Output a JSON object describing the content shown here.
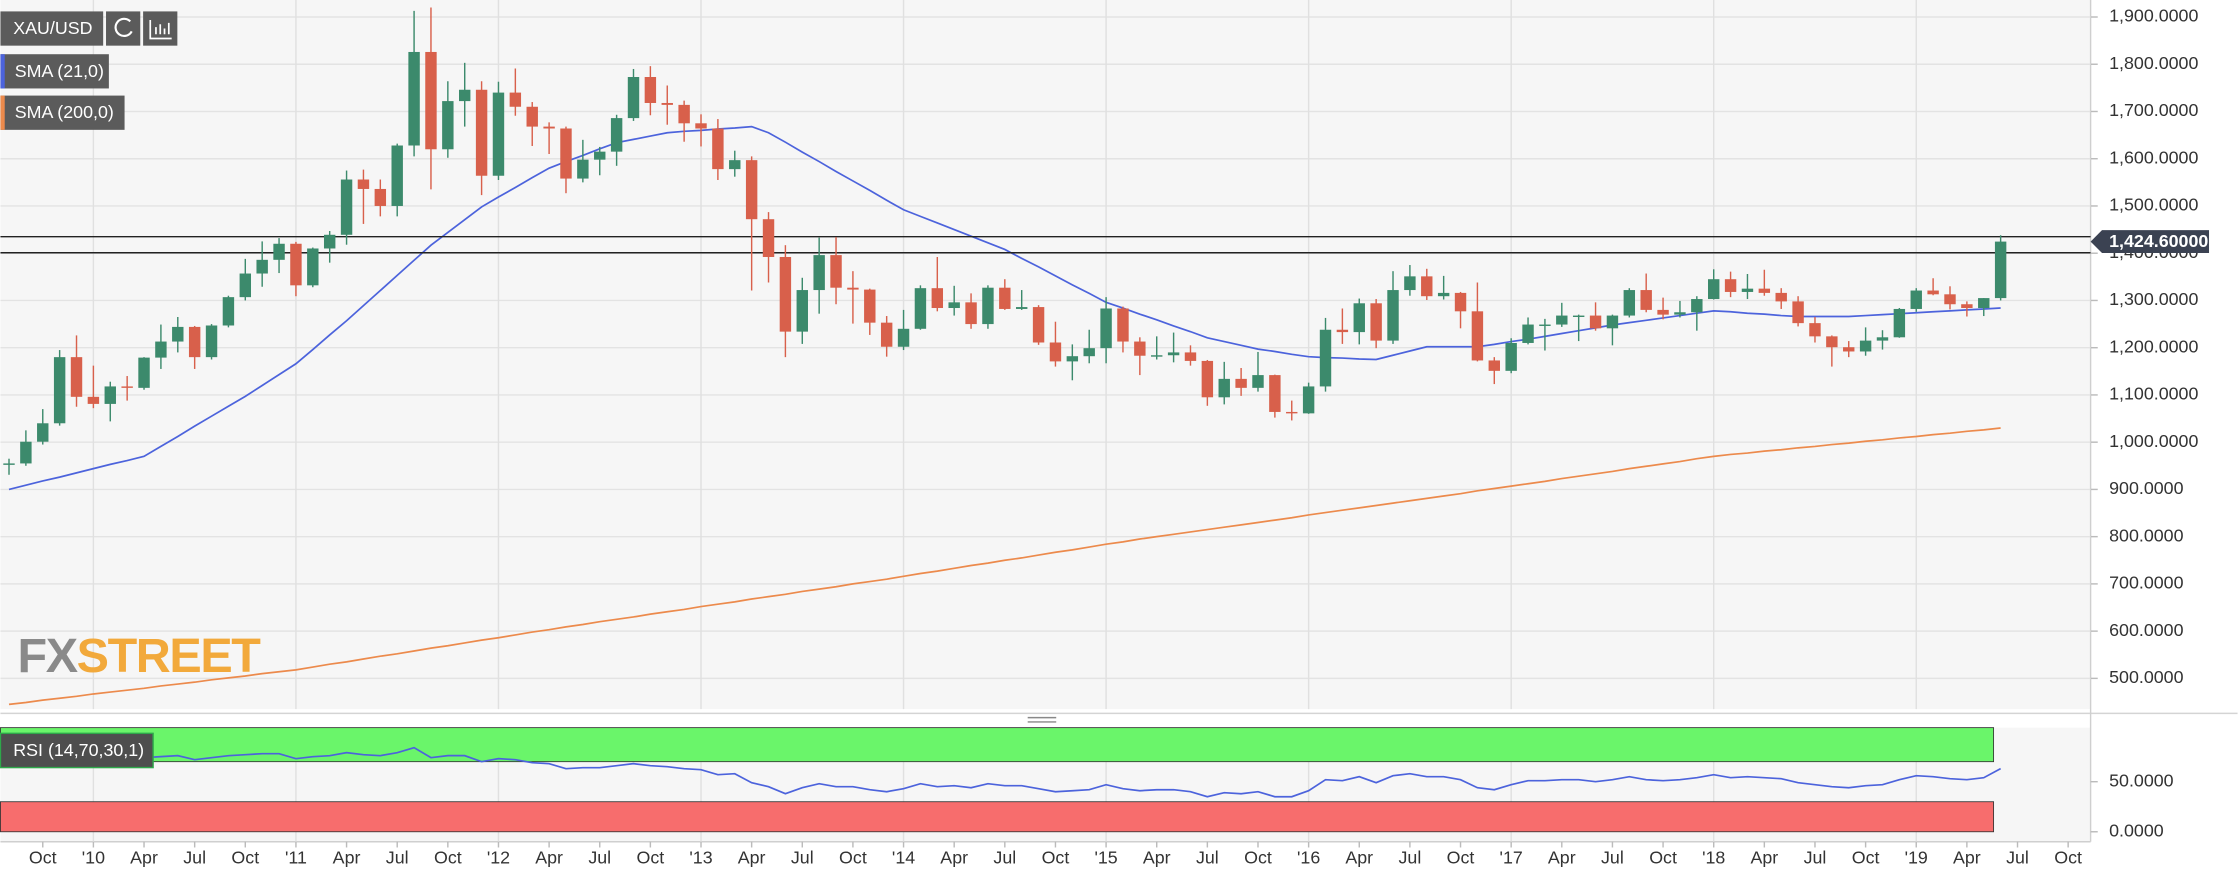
{
  "logo": [
    "FX",
    "STREET"
  ],
  "chart_data": [
    {
      "type": "candlestick",
      "title": "XAU/USD",
      "categories": [
        null,
        null,
        "Oct",
        null,
        null,
        "'10",
        null,
        null,
        "Apr",
        null,
        null,
        "Jul",
        null,
        null,
        "Oct",
        null,
        null,
        "'11",
        null,
        null,
        "Apr",
        null,
        null,
        "Jul",
        null,
        null,
        "Oct",
        null,
        null,
        "'12",
        null,
        null,
        "Apr",
        null,
        null,
        "Jul",
        null,
        null,
        "Oct",
        null,
        null,
        "'13",
        null,
        null,
        "Apr",
        null,
        null,
        "Jul",
        null,
        null,
        "Oct",
        null,
        null,
        "'14",
        null,
        null,
        "Apr",
        null,
        null,
        "Jul",
        null,
        null,
        "Oct",
        null,
        null,
        "'15",
        null,
        null,
        "Apr",
        null,
        null,
        "Jul",
        null,
        null,
        "Oct",
        null,
        null,
        "'16",
        null,
        null,
        "Apr",
        null,
        null,
        "Jul",
        null,
        null,
        "Oct",
        null,
        null,
        "'17",
        null,
        null,
        "Apr",
        null,
        null,
        "Jul",
        null,
        null,
        "Oct",
        null,
        null,
        "'18",
        null,
        null,
        "Apr",
        null,
        null,
        "Jul",
        null,
        null,
        "Oct",
        null,
        null,
        "'19",
        null,
        null,
        "Apr",
        null,
        null,
        "Jul",
        null,
        null,
        "Oct"
      ],
      "open": [
        953,
        955,
        1001,
        1040,
        1180,
        1096,
        1081,
        1118,
        1115,
        1179,
        1213,
        1244,
        1180,
        1247,
        1307,
        1357,
        1386,
        1420,
        1332,
        1410,
        1439,
        1556,
        1536,
        1500,
        1628,
        1826,
        1620,
        1722,
        1746,
        1564,
        1740,
        1710,
        1668,
        1664,
        1558,
        1598,
        1615,
        1686,
        1773,
        1718,
        1714,
        1675,
        1664,
        1578,
        1597,
        1472,
        1392,
        1234,
        1322,
        1396,
        1327,
        1323,
        1253,
        1202,
        1240,
        1326,
        1284,
        1296,
        1250,
        1327,
        1282,
        1286,
        1211,
        1171,
        1182,
        1199,
        1283,
        1213,
        1183,
        1184,
        1190,
        1172,
        1095,
        1134,
        1115,
        1142,
        1064,
        1061,
        1118,
        1238,
        1233,
        1294,
        1215,
        1322,
        1351,
        1309,
        1316,
        1277,
        1173,
        1151,
        1210,
        1249,
        1249,
        1268,
        1268,
        1241,
        1268,
        1322,
        1280,
        1270,
        1275,
        1303,
        1345,
        1318,
        1325,
        1316,
        1298,
        1252,
        1224,
        1201,
        1192,
        1215,
        1222,
        1282,
        1321,
        1313,
        1292,
        1284,
        1305,
        null,
        null,
        null,
        null
      ],
      "high": [
        965,
        1025,
        1070,
        1195,
        1226,
        1162,
        1128,
        1140,
        1180,
        1249,
        1265,
        1246,
        1250,
        1310,
        1388,
        1425,
        1432,
        1424,
        1412,
        1447,
        1575,
        1577,
        1556,
        1632,
        1913,
        1920,
        1764,
        1803,
        1764,
        1763,
        1791,
        1720,
        1677,
        1668,
        1640,
        1625,
        1693,
        1790,
        1796,
        1755,
        1723,
        1694,
        1684,
        1617,
        1605,
        1487,
        1417,
        1348,
        1433,
        1434,
        1362,
        1325,
        1267,
        1280,
        1332,
        1392,
        1331,
        1315,
        1332,
        1345,
        1322,
        1290,
        1255,
        1207,
        1238,
        1307,
        1287,
        1222,
        1224,
        1232,
        1205,
        1174,
        1170,
        1157,
        1191,
        1143,
        1088,
        1126,
        1263,
        1283,
        1304,
        1303,
        1362,
        1375,
        1367,
        1352,
        1318,
        1338,
        1180,
        1220,
        1264,
        1261,
        1295,
        1270,
        1296,
        1270,
        1326,
        1357,
        1306,
        1299,
        1309,
        1366,
        1361,
        1356,
        1365,
        1326,
        1309,
        1265,
        1226,
        1214,
        1243,
        1237,
        1284,
        1326,
        1347,
        1330,
        1298,
        1305,
        1438,
        null,
        null,
        null,
        null
      ],
      "low": [
        931,
        950,
        995,
        1035,
        1075,
        1072,
        1044,
        1088,
        1111,
        1155,
        1190,
        1155,
        1175,
        1243,
        1300,
        1329,
        1358,
        1309,
        1328,
        1380,
        1418,
        1462,
        1478,
        1478,
        1605,
        1535,
        1602,
        1668,
        1523,
        1555,
        1691,
        1627,
        1610,
        1527,
        1550,
        1565,
        1585,
        1680,
        1692,
        1672,
        1636,
        1626,
        1555,
        1562,
        1321,
        1338,
        1180,
        1208,
        1272,
        1292,
        1251,
        1227,
        1181,
        1195,
        1238,
        1277,
        1268,
        1240,
        1240,
        1280,
        1280,
        1206,
        1160,
        1131,
        1167,
        1167,
        1190,
        1142,
        1175,
        1169,
        1162,
        1077,
        1080,
        1098,
        1107,
        1052,
        1046,
        1060,
        1107,
        1208,
        1207,
        1199,
        1208,
        1310,
        1301,
        1302,
        1241,
        1171,
        1123,
        1146,
        1207,
        1194,
        1244,
        1214,
        1236,
        1205,
        1264,
        1275,
        1260,
        1264,
        1236,
        1302,
        1307,
        1303,
        1310,
        1282,
        1245,
        1211,
        1160,
        1180,
        1183,
        1196,
        1221,
        1276,
        1311,
        1281,
        1266,
        1267,
        1300,
        null,
        null,
        null,
        null
      ],
      "close": [
        955,
        1001,
        1040,
        1180,
        1096,
        1081,
        1118,
        1115,
        1179,
        1213,
        1244,
        1180,
        1247,
        1307,
        1357,
        1386,
        1420,
        1332,
        1410,
        1439,
        1556,
        1536,
        1500,
        1628,
        1826,
        1620,
        1722,
        1746,
        1564,
        1740,
        1710,
        1668,
        1664,
        1558,
        1598,
        1615,
        1686,
        1773,
        1718,
        1714,
        1675,
        1664,
        1578,
        1597,
        1472,
        1392,
        1234,
        1322,
        1396,
        1327,
        1323,
        1253,
        1202,
        1240,
        1326,
        1284,
        1296,
        1250,
        1327,
        1282,
        1286,
        1211,
        1171,
        1182,
        1199,
        1283,
        1213,
        1183,
        1184,
        1190,
        1172,
        1095,
        1134,
        1115,
        1142,
        1064,
        1061,
        1118,
        1238,
        1233,
        1294,
        1215,
        1322,
        1351,
        1309,
        1316,
        1277,
        1173,
        1151,
        1210,
        1249,
        1249,
        1268,
        1268,
        1241,
        1268,
        1322,
        1280,
        1270,
        1275,
        1303,
        1345,
        1318,
        1325,
        1316,
        1298,
        1252,
        1224,
        1201,
        1192,
        1215,
        1222,
        1282,
        1321,
        1313,
        1292,
        1284,
        1305,
        1424.6,
        null,
        null,
        null,
        null
      ],
      "last_price_label": "1,424.60000",
      "up_color": "#3c8a6c",
      "down_color": "#d8604b",
      "series": [
        {
          "name": "SMA (21,0)",
          "color": "#4c63dc",
          "values": [
            900,
            909,
            918,
            926,
            935,
            944,
            953,
            961,
            970,
            991,
            1012,
            1034,
            1055,
            1076,
            1097,
            1120,
            1143,
            1166,
            1196,
            1227,
            1257,
            1289,
            1321,
            1353,
            1385,
            1417,
            1444,
            1471,
            1498,
            1519,
            1539,
            1560,
            1580,
            1594,
            1607,
            1621,
            1634,
            1641,
            1648,
            1655,
            1658,
            1660,
            1663,
            1665,
            1668,
            1655,
            1635,
            1614,
            1594,
            1573,
            1553,
            1533,
            1512,
            1492,
            1478,
            1464,
            1450,
            1436,
            1422,
            1408,
            1389,
            1371,
            1352,
            1333,
            1315,
            1296,
            1284,
            1271,
            1259,
            1246,
            1234,
            1221,
            1213,
            1205,
            1197,
            1192,
            1186,
            1181,
            1179,
            1178,
            1176,
            1175,
            1184,
            1193,
            1202,
            1202,
            1202,
            1202,
            1207,
            1213,
            1218,
            1224,
            1230,
            1236,
            1242,
            1248,
            1253,
            1258,
            1263,
            1268,
            1273,
            1278,
            1276,
            1273,
            1271,
            1268,
            1266,
            1266,
            1266,
            1266,
            1268,
            1270,
            1272,
            1274,
            1276,
            1278,
            1280,
            1282,
            1284,
            null,
            null,
            null,
            null
          ]
        },
        {
          "name": "SMA (200,0)",
          "color": "#ec8a4c",
          "values": [
            445,
            449,
            454,
            458,
            462,
            467,
            471,
            475,
            479,
            484,
            488,
            492,
            497,
            501,
            505,
            510,
            514,
            518,
            524,
            530,
            535,
            541,
            547,
            552,
            558,
            564,
            569,
            575,
            581,
            586,
            592,
            598,
            603,
            609,
            614,
            620,
            625,
            630,
            636,
            641,
            646,
            652,
            657,
            662,
            668,
            673,
            678,
            684,
            689,
            694,
            700,
            705,
            710,
            716,
            722,
            727,
            733,
            739,
            744,
            750,
            755,
            761,
            767,
            772,
            778,
            784,
            789,
            795,
            800,
            805,
            810,
            815,
            820,
            825,
            830,
            835,
            840,
            846,
            851,
            856,
            861,
            866,
            871,
            876,
            881,
            886,
            891,
            897,
            902,
            907,
            912,
            917,
            923,
            928,
            933,
            938,
            944,
            949,
            954,
            959,
            965,
            970,
            974,
            977,
            981,
            984,
            988,
            991,
            995,
            998,
            1002,
            1005,
            1009,
            1012,
            1016,
            1019,
            1023,
            1026,
            1030,
            null,
            null,
            null,
            null
          ]
        }
      ],
      "hlines": [
        1435,
        1401
      ],
      "ylim": [
        435,
        1936
      ],
      "yticks": [
        {
          "value": 500,
          "label": "500.0000"
        },
        {
          "value": 600,
          "label": "600.0000"
        },
        {
          "value": 700,
          "label": "700.0000"
        },
        {
          "value": 800,
          "label": "800.0000"
        },
        {
          "value": 900,
          "label": "900.0000"
        },
        {
          "value": 1000,
          "label": "1,000.0000"
        },
        {
          "value": 1100,
          "label": "1,100.0000"
        },
        {
          "value": 1200,
          "label": "1,200.0000"
        },
        {
          "value": 1300,
          "label": "1,300.0000"
        },
        {
          "value": 1400,
          "label": "1,400.0000"
        },
        {
          "value": 1500,
          "label": "1,500.0000"
        },
        {
          "value": 1600,
          "label": "1,600.0000"
        },
        {
          "value": 1700,
          "label": "1,700.0000"
        },
        {
          "value": 1800,
          "label": "1,800.0000"
        },
        {
          "value": 1900,
          "label": "1,900.0000"
        }
      ],
      "grid": true
    },
    {
      "type": "line",
      "title": "RSI (14,70,30,1)",
      "color": "#4c63dc",
      "values": [
        70,
        72,
        74,
        80,
        72,
        71,
        72,
        72,
        74,
        75,
        76,
        72,
        74,
        76,
        77,
        78,
        78,
        73,
        75,
        76,
        79,
        77,
        76,
        79,
        84,
        74,
        76,
        76,
        70,
        73,
        72,
        69,
        68,
        63,
        64,
        64,
        66,
        68,
        66,
        65,
        63,
        62,
        57,
        58,
        49,
        45,
        38,
        44,
        48,
        45,
        45,
        42,
        40,
        43,
        48,
        45,
        46,
        44,
        48,
        46,
        46,
        43,
        40,
        41,
        42,
        47,
        43,
        41,
        42,
        42,
        40,
        35,
        39,
        38,
        40,
        35,
        35,
        41,
        52,
        51,
        55,
        49,
        56,
        58,
        55,
        55,
        52,
        44,
        42,
        47,
        51,
        51,
        52,
        52,
        50,
        52,
        55,
        52,
        51,
        52,
        54,
        57,
        54,
        55,
        54,
        53,
        49,
        47,
        45,
        44,
        46,
        47,
        52,
        56,
        55,
        53,
        52,
        54,
        63,
        null,
        null,
        null,
        null
      ],
      "bands": [
        {
          "from": 70,
          "to": 104,
          "color": "#6af56a"
        },
        {
          "from": 0,
          "to": 30,
          "color": "#f76d6d"
        }
      ],
      "ylim": [
        -10,
        104
      ],
      "yticks": [
        {
          "value": 50,
          "label": "50.0000"
        },
        {
          "value": 0,
          "label": "0.0000"
        }
      ]
    }
  ]
}
